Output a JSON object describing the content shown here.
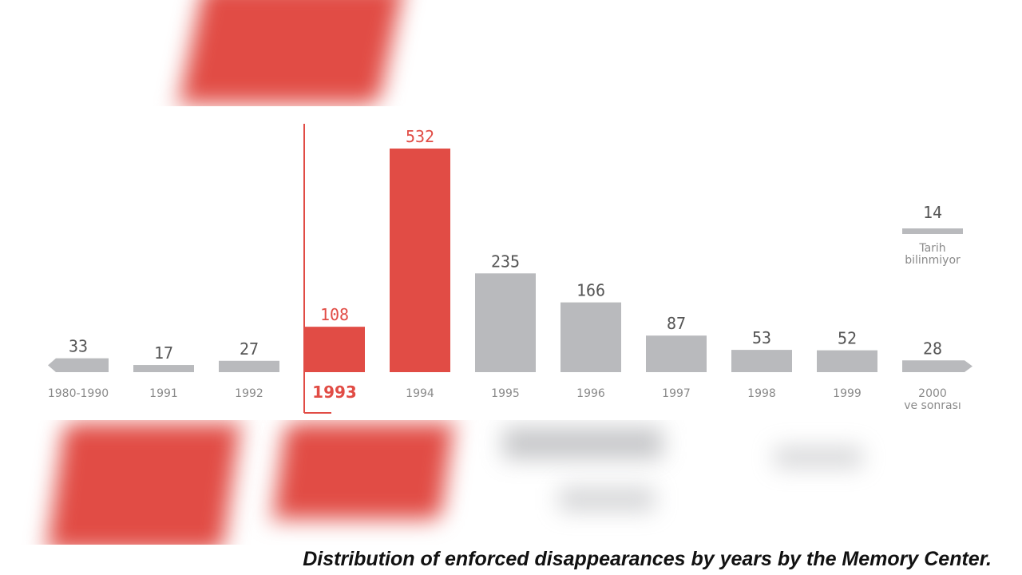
{
  "caption": "Distribution of enforced disappearances by years by the Memory Center.",
  "colors": {
    "accent": "#e14c45",
    "neutral": "#b9babd",
    "text": "#555555",
    "label": "#8a8a8a"
  },
  "chart_data": {
    "type": "bar",
    "categories": [
      "1980-1990",
      "1991",
      "1992",
      "1993",
      "1994",
      "1995",
      "1996",
      "1997",
      "1998",
      "1999",
      "2000 ve sonrası"
    ],
    "values": [
      33,
      17,
      27,
      108,
      532,
      235,
      166,
      87,
      53,
      52,
      28
    ],
    "highlighted": [
      "1993",
      "1994"
    ],
    "emphasized_label": "1993",
    "unknown_date": {
      "label": "Tarih bilinmiyor",
      "value": 14
    },
    "ylim": [
      0,
      532
    ],
    "grid": false,
    "legend": "none"
  }
}
